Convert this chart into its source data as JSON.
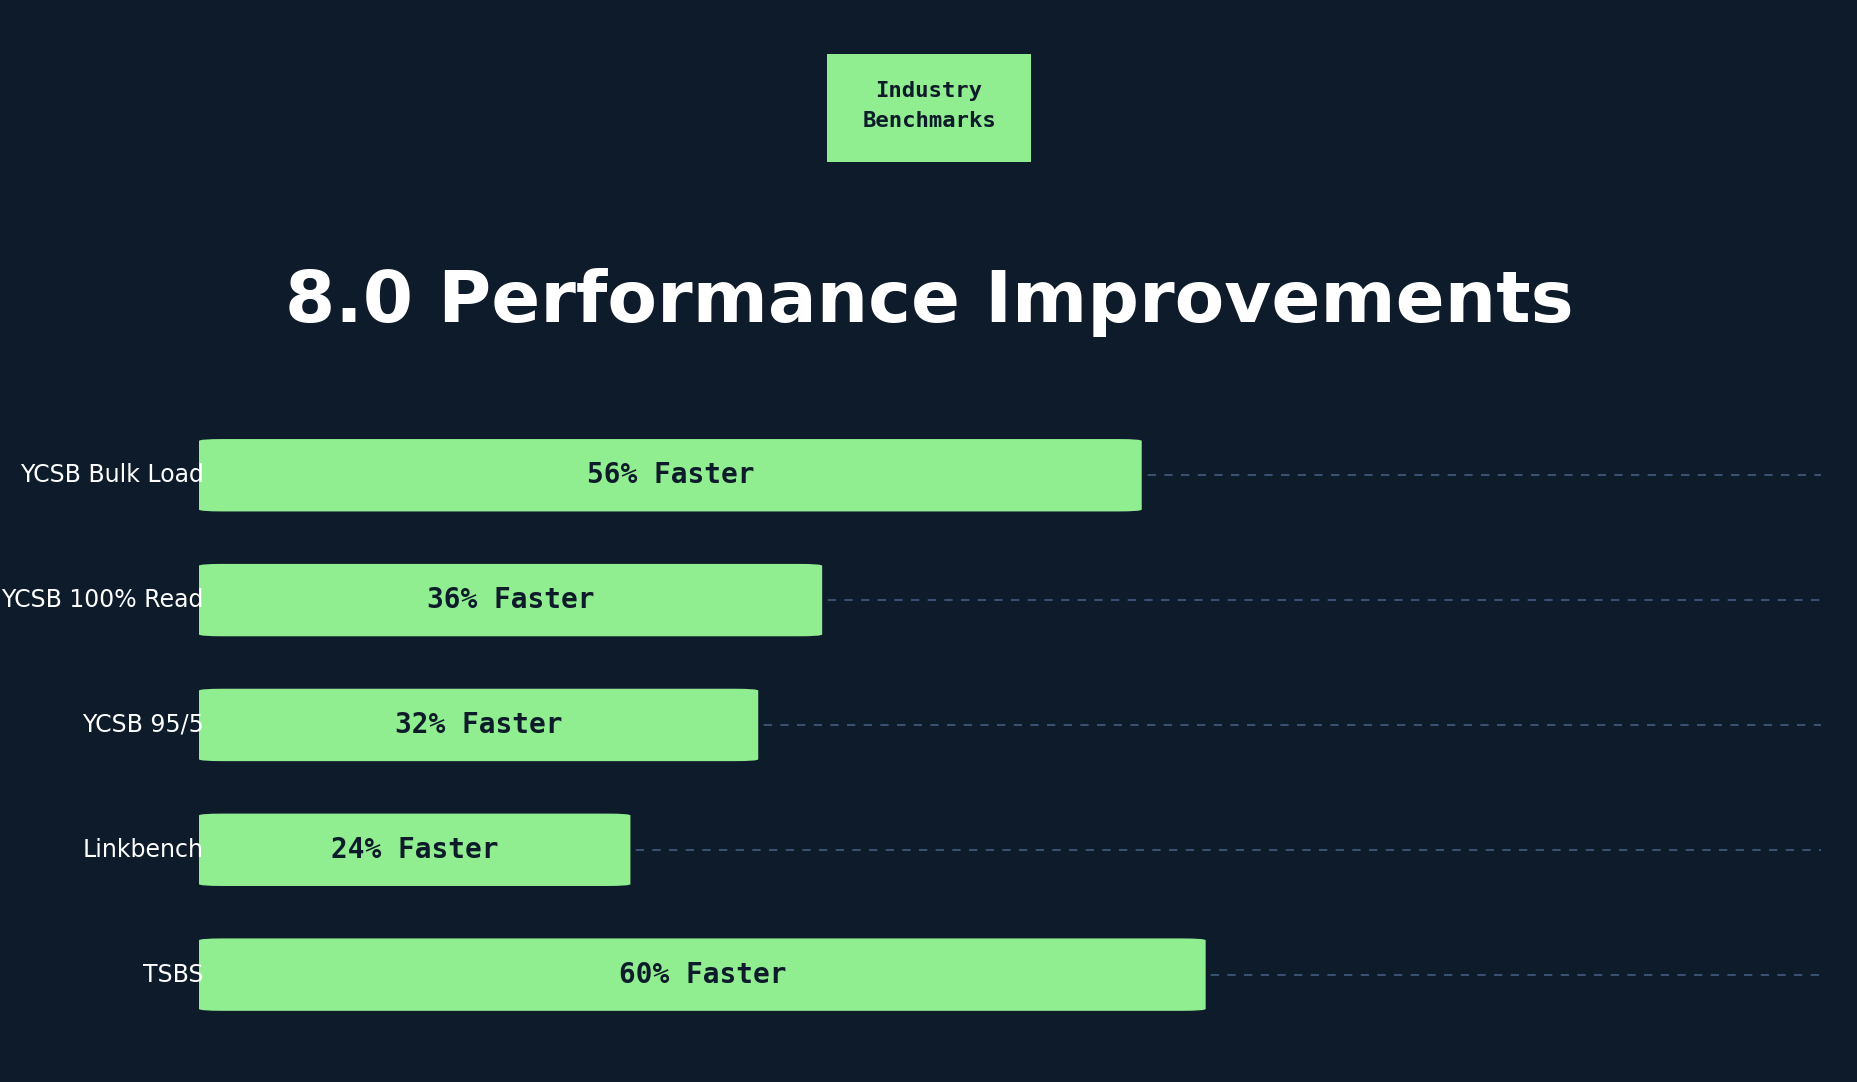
{
  "background_color": "#0d1b2a",
  "title": "8.0 Performance Improvements",
  "title_color": "#ffffff",
  "title_fontsize": 52,
  "badge_text": "Industry\nBenchmarks",
  "badge_bg_color": "#90ee90",
  "badge_text_color": "#0d1b2a",
  "badge_fontsize": 16,
  "categories": [
    "YCSB Bulk Load",
    "YCSB 100% Read",
    "YCSB 95/5",
    "Linkbench",
    "TSBS"
  ],
  "values": [
    56,
    36,
    32,
    24,
    60
  ],
  "labels": [
    "56% Faster",
    "36% Faster",
    "32% Faster",
    "24% Faster",
    "60% Faster"
  ],
  "bar_color": "#90ee90",
  "bar_text_color": "#0d1b2a",
  "bar_text_fontsize": 20,
  "label_color": "#ffffff",
  "label_fontsize": 17,
  "max_value": 100,
  "dash_color": "#3a5070",
  "bar_height": 0.55,
  "fig_width": 18.58,
  "fig_height": 10.82,
  "dpi": 100
}
